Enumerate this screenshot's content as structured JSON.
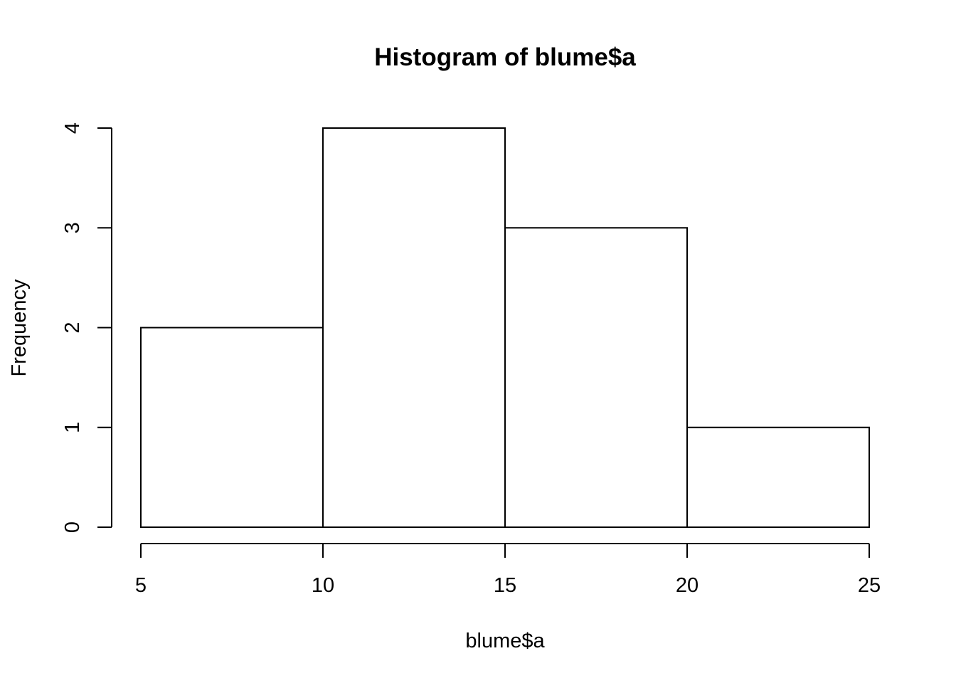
{
  "chart_data": {
    "type": "bar",
    "subtype": "histogram",
    "title": "Histogram of blume$a",
    "xlabel": "blume$a",
    "ylabel": "Frequency",
    "bins": [
      {
        "from": 5,
        "to": 10,
        "count": 2
      },
      {
        "from": 10,
        "to": 15,
        "count": 4
      },
      {
        "from": 15,
        "to": 20,
        "count": 3
      },
      {
        "from": 20,
        "to": 25,
        "count": 1
      }
    ],
    "xlim": [
      5,
      25
    ],
    "ylim": [
      0,
      4
    ],
    "x_ticks": [
      "5",
      "10",
      "15",
      "20",
      "25"
    ],
    "y_ticks": [
      "0",
      "1",
      "2",
      "3",
      "4"
    ],
    "grid": false,
    "legend": "none",
    "colors": {
      "bar_fill": "#ffffff",
      "bar_stroke": "#000000"
    }
  }
}
